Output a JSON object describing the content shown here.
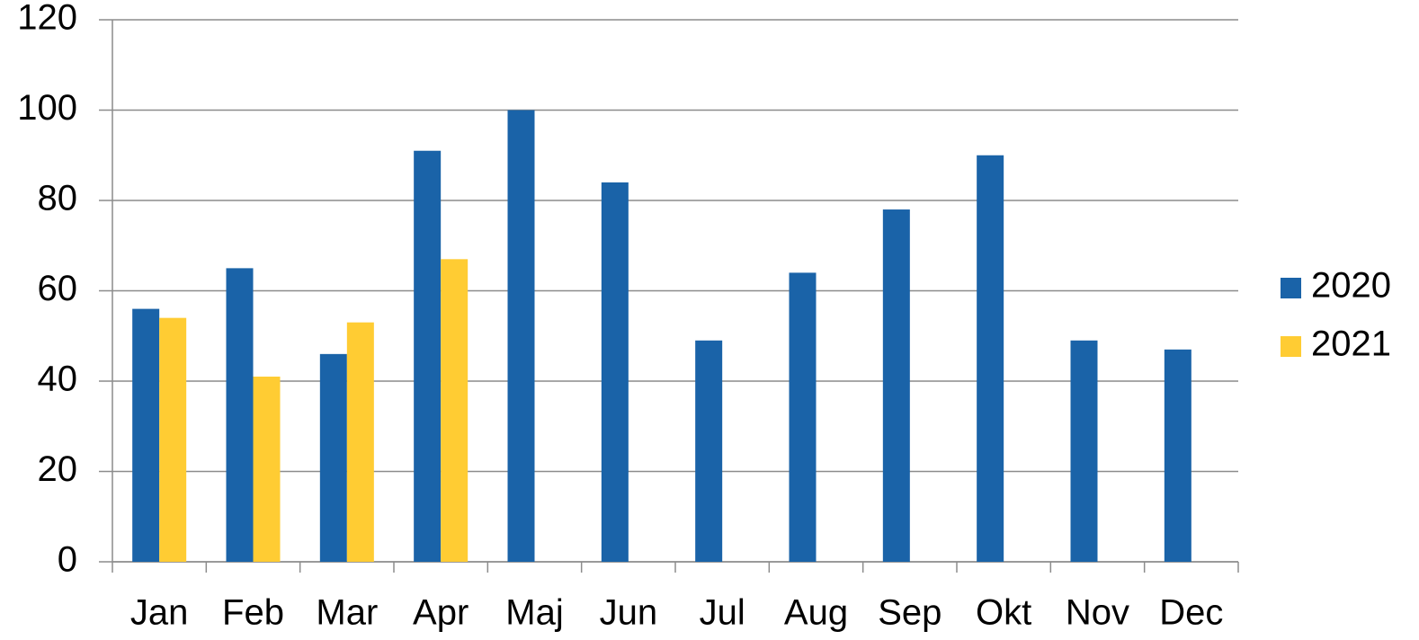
{
  "chart_data": {
    "type": "bar",
    "categories": [
      "Jan",
      "Feb",
      "Mar",
      "Apr",
      "Maj",
      "Jun",
      "Jul",
      "Aug",
      "Sep",
      "Okt",
      "Nov",
      "Dec"
    ],
    "series": [
      {
        "name": "2020",
        "color": "#1a63a8",
        "values": [
          56,
          65,
          46,
          91,
          100,
          84,
          49,
          64,
          78,
          90,
          49,
          47
        ]
      },
      {
        "name": "2021",
        "color": "#ffcc33",
        "values": [
          54,
          41,
          53,
          67,
          null,
          null,
          null,
          null,
          null,
          null,
          null,
          null
        ]
      }
    ],
    "ylim": [
      0,
      120
    ],
    "yticks": [
      0,
      20,
      40,
      60,
      80,
      100,
      120
    ],
    "grid": true,
    "legend": "right"
  }
}
